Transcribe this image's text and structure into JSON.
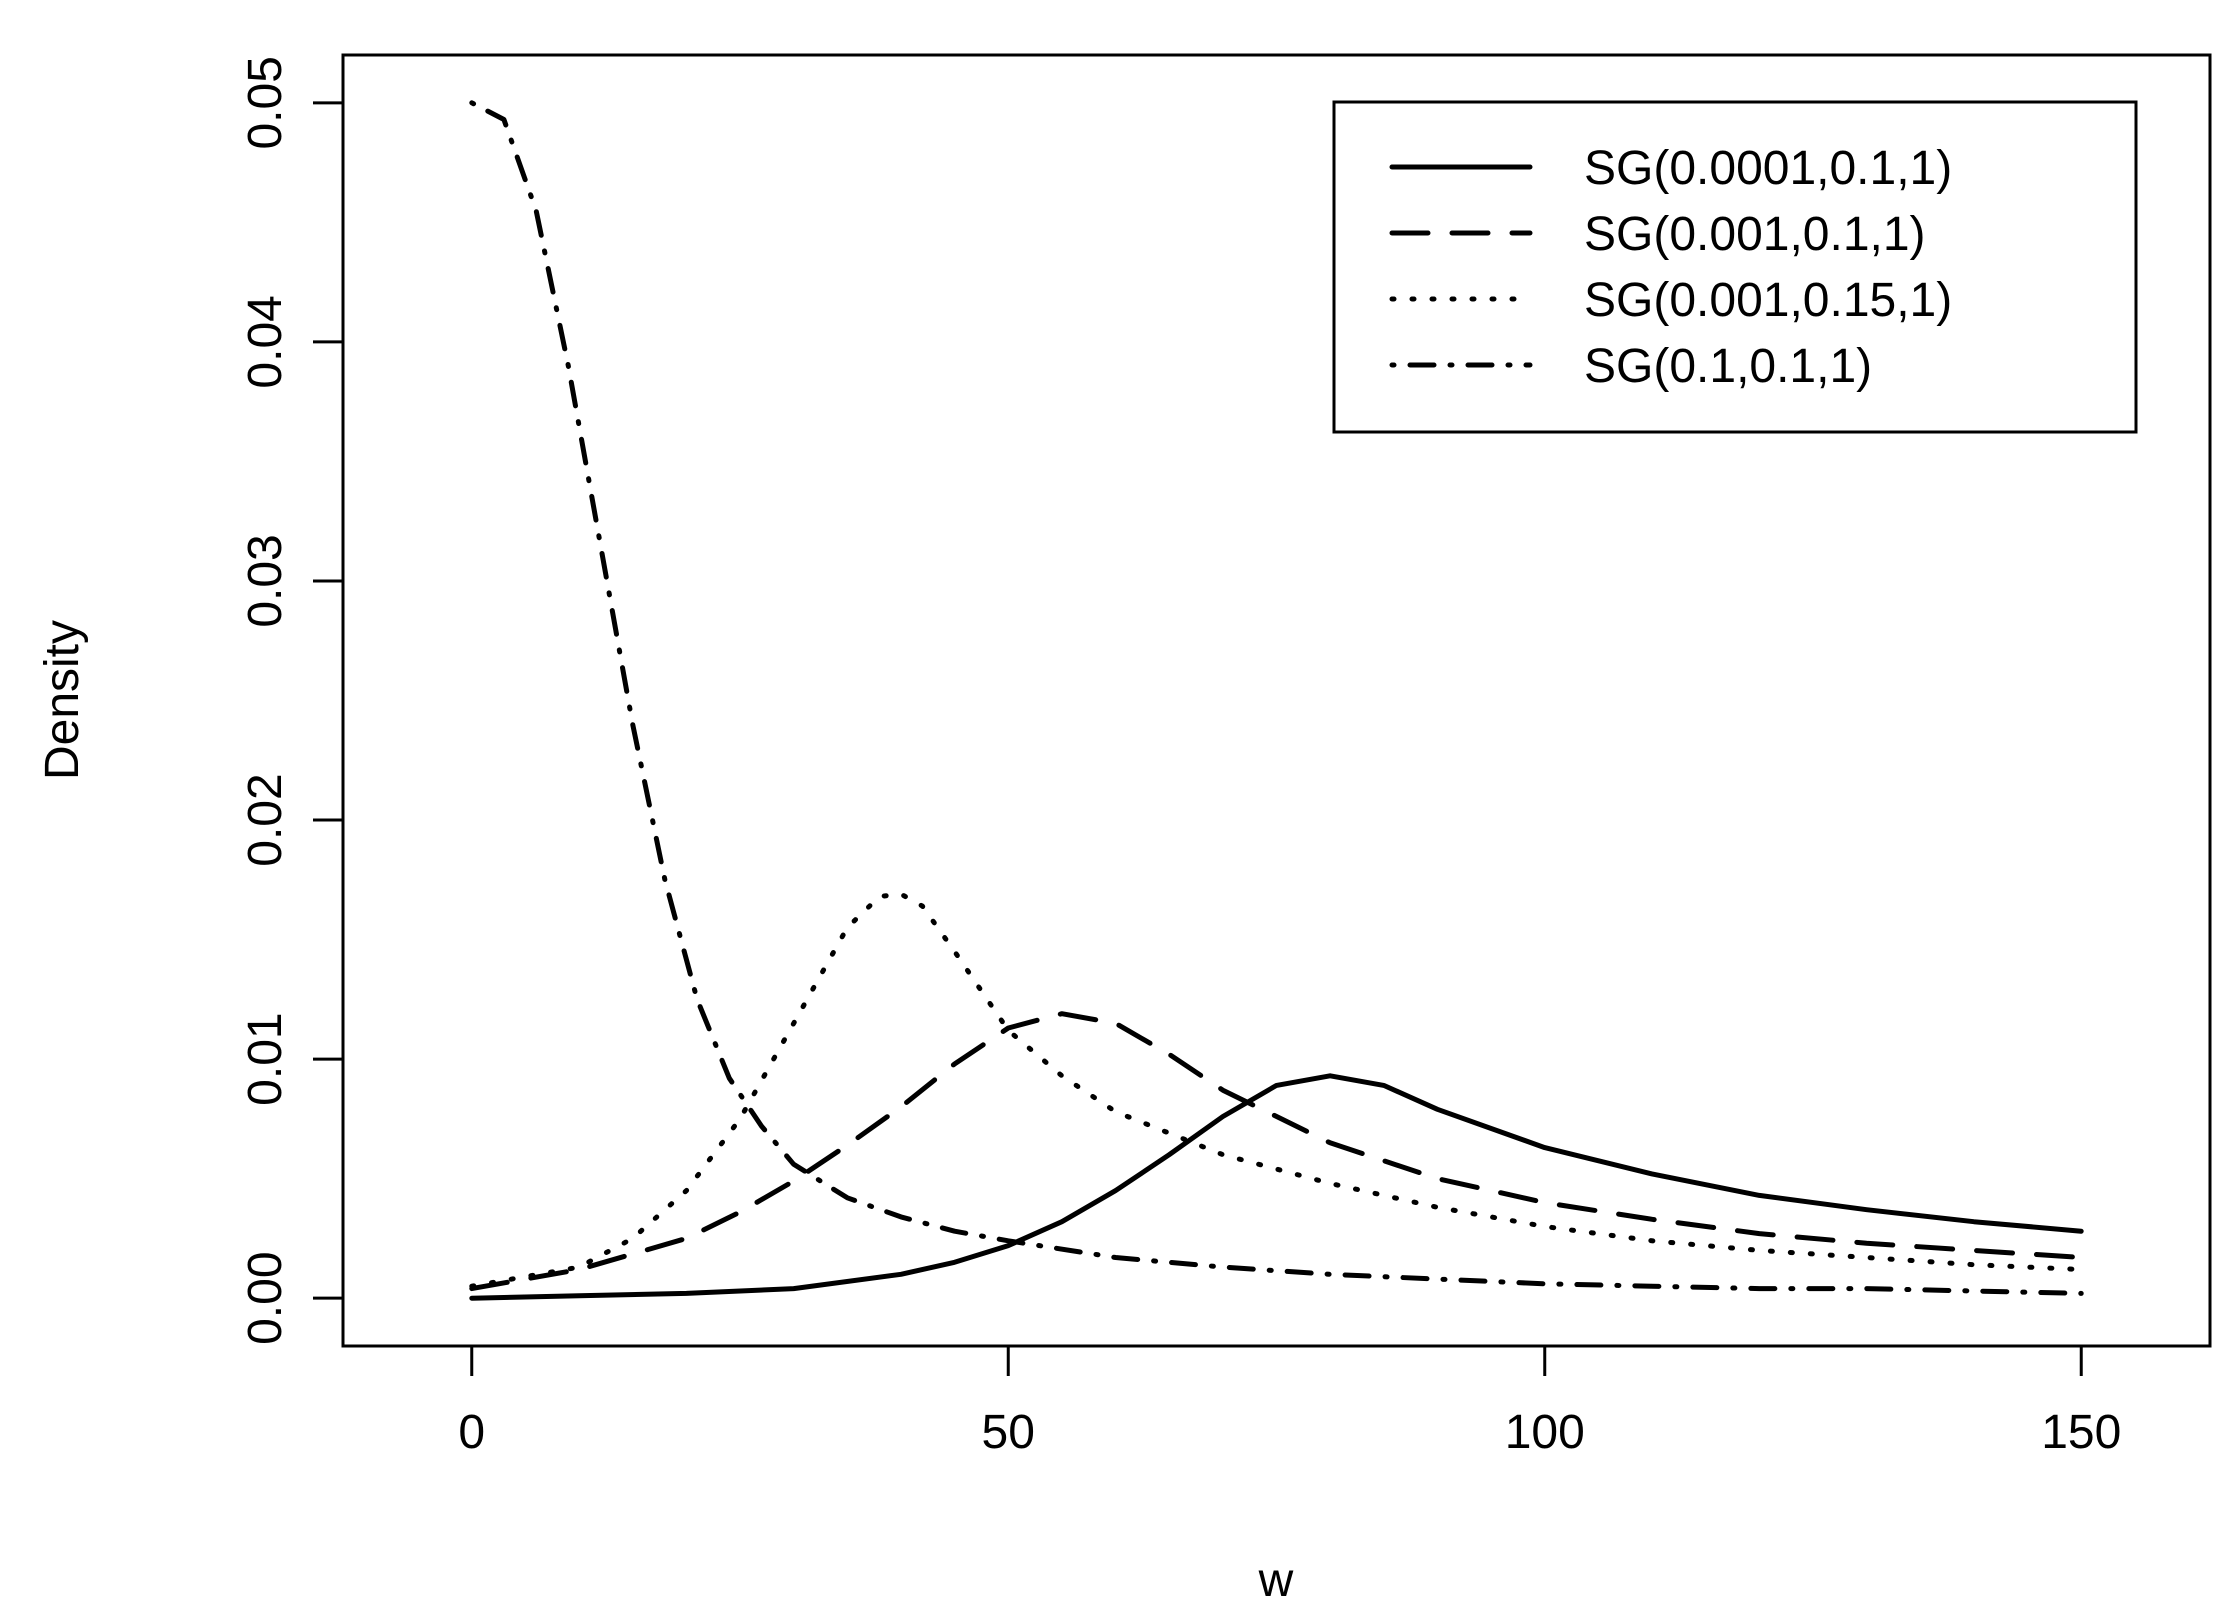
{
  "chart_data": {
    "type": "line",
    "title": "",
    "xlabel": "w",
    "ylabel": "Density",
    "xlim": [
      -12,
      162
    ],
    "ylim": [
      -0.002,
      0.052
    ],
    "xticks": [
      0,
      50,
      100,
      150
    ],
    "xtick_labels": [
      "0",
      "50",
      "100",
      "150"
    ],
    "yticks": [
      0.0,
      0.01,
      0.02,
      0.03,
      0.04,
      0.05
    ],
    "ytick_labels": [
      "0.00",
      "0.01",
      "0.02",
      "0.03",
      "0.04",
      "0.05"
    ],
    "grid": false,
    "legend_position": "top-right",
    "series": [
      {
        "name": "SG(0.0001,0.1,1)",
        "style": "solid",
        "x": [
          0,
          10,
          20,
          30,
          40,
          45,
          50,
          55,
          60,
          65,
          70,
          75,
          80,
          85,
          90,
          100,
          110,
          120,
          130,
          140,
          150
        ],
        "y": [
          0.0,
          0.0001,
          0.0002,
          0.0004,
          0.001,
          0.0015,
          0.0022,
          0.0032,
          0.0045,
          0.006,
          0.0076,
          0.0089,
          0.0093,
          0.0089,
          0.0079,
          0.0063,
          0.0052,
          0.0043,
          0.0037,
          0.0032,
          0.0028
        ]
      },
      {
        "name": "SG(0.001,0.1,1)",
        "style": "dashed",
        "x": [
          0,
          10,
          20,
          25,
          30,
          35,
          40,
          45,
          50,
          55,
          60,
          65,
          70,
          80,
          90,
          100,
          110,
          120,
          130,
          140,
          150
        ],
        "y": [
          0.0004,
          0.0012,
          0.0025,
          0.0036,
          0.0049,
          0.0064,
          0.008,
          0.0098,
          0.0113,
          0.0119,
          0.0115,
          0.0102,
          0.0087,
          0.0065,
          0.005,
          0.004,
          0.0033,
          0.0027,
          0.0023,
          0.002,
          0.0017
        ]
      },
      {
        "name": "SG(0.001,0.15,1)",
        "style": "dotted",
        "x": [
          0,
          10,
          15,
          20,
          25,
          30,
          35,
          38,
          40,
          42,
          45,
          50,
          55,
          60,
          70,
          80,
          90,
          100,
          110,
          120,
          130,
          140,
          150
        ],
        "y": [
          0.0005,
          0.0013,
          0.0025,
          0.0045,
          0.0075,
          0.0115,
          0.0155,
          0.0168,
          0.0169,
          0.0164,
          0.0145,
          0.0112,
          0.0093,
          0.0078,
          0.006,
          0.0048,
          0.0038,
          0.003,
          0.0024,
          0.002,
          0.0017,
          0.0014,
          0.0012
        ]
      },
      {
        "name": "SG(0.1,0.1,1)",
        "style": "dashdot",
        "x": [
          0,
          3,
          6,
          9,
          12,
          15,
          18,
          21,
          24,
          27,
          30,
          35,
          40,
          45,
          50,
          60,
          70,
          80,
          90,
          100,
          110,
          120,
          130,
          140,
          150
        ],
        "y": [
          0.05,
          0.0493,
          0.0455,
          0.039,
          0.0315,
          0.024,
          0.0175,
          0.0125,
          0.0092,
          0.0072,
          0.0056,
          0.0042,
          0.0034,
          0.0028,
          0.0024,
          0.0017,
          0.0013,
          0.001,
          0.0008,
          0.0006,
          0.0005,
          0.0004,
          0.0004,
          0.0003,
          0.0002
        ]
      }
    ]
  }
}
